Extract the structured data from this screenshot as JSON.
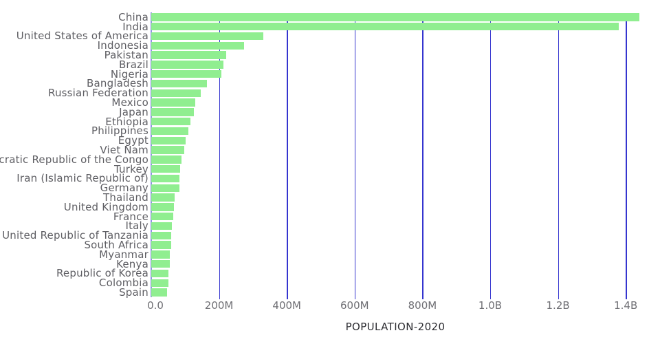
{
  "chart": {
    "axis_title": "POPULATION-2020",
    "x_ticks": {
      "labels": [
        "0.0",
        "200M",
        "400M",
        "600M",
        "800M",
        "1.0B",
        "1.2B",
        "1.4B"
      ],
      "values_millions": [
        0,
        200,
        400,
        600,
        800,
        1000,
        1200,
        1400
      ]
    },
    "colors": {
      "bar": "#90ee90",
      "gridline": "#3535cf",
      "zero_line": "#6868dd",
      "country_label": "#5e5e63",
      "tick_label": "#6f6f74",
      "title": "#2c2c31"
    }
  },
  "chart_data": {
    "type": "bar",
    "orientation": "horizontal",
    "title": "POPULATION-2020",
    "xlabel": "POPULATION-2020",
    "ylabel": "",
    "grid": true,
    "legend": false,
    "xlim_millions": [
      0,
      1450
    ],
    "x_tick_labels": [
      "0.0",
      "200M",
      "400M",
      "600M",
      "800M",
      "1.0B",
      "1.2B",
      "1.4B"
    ],
    "categories": [
      "China",
      "India",
      "United States of America",
      "Indonesia",
      "Pakistan",
      "Brazil",
      "Nigeria",
      "Bangladesh",
      "Russian Federation",
      "Mexico",
      "Japan",
      "Ethiopia",
      "Philippines",
      "Egypt",
      "Viet Nam",
      "Democratic Republic of the Congo",
      "Turkey",
      "Iran (Islamic Republic of)",
      "Germany",
      "Thailand",
      "United Kingdom",
      "France",
      "Italy",
      "United Republic of Tanzania",
      "South Africa",
      "Myanmar",
      "Kenya",
      "Republic of Korea",
      "Colombia",
      "Spain"
    ],
    "values_millions": [
      1439.32,
      1380.0,
      331.0,
      273.52,
      220.89,
      212.56,
      206.14,
      164.69,
      145.93,
      128.93,
      126.48,
      114.96,
      109.58,
      102.33,
      97.34,
      89.56,
      84.34,
      83.99,
      83.78,
      69.8,
      67.89,
      65.27,
      60.46,
      59.73,
      59.31,
      54.41,
      53.77,
      51.27,
      50.88,
      46.75
    ]
  }
}
